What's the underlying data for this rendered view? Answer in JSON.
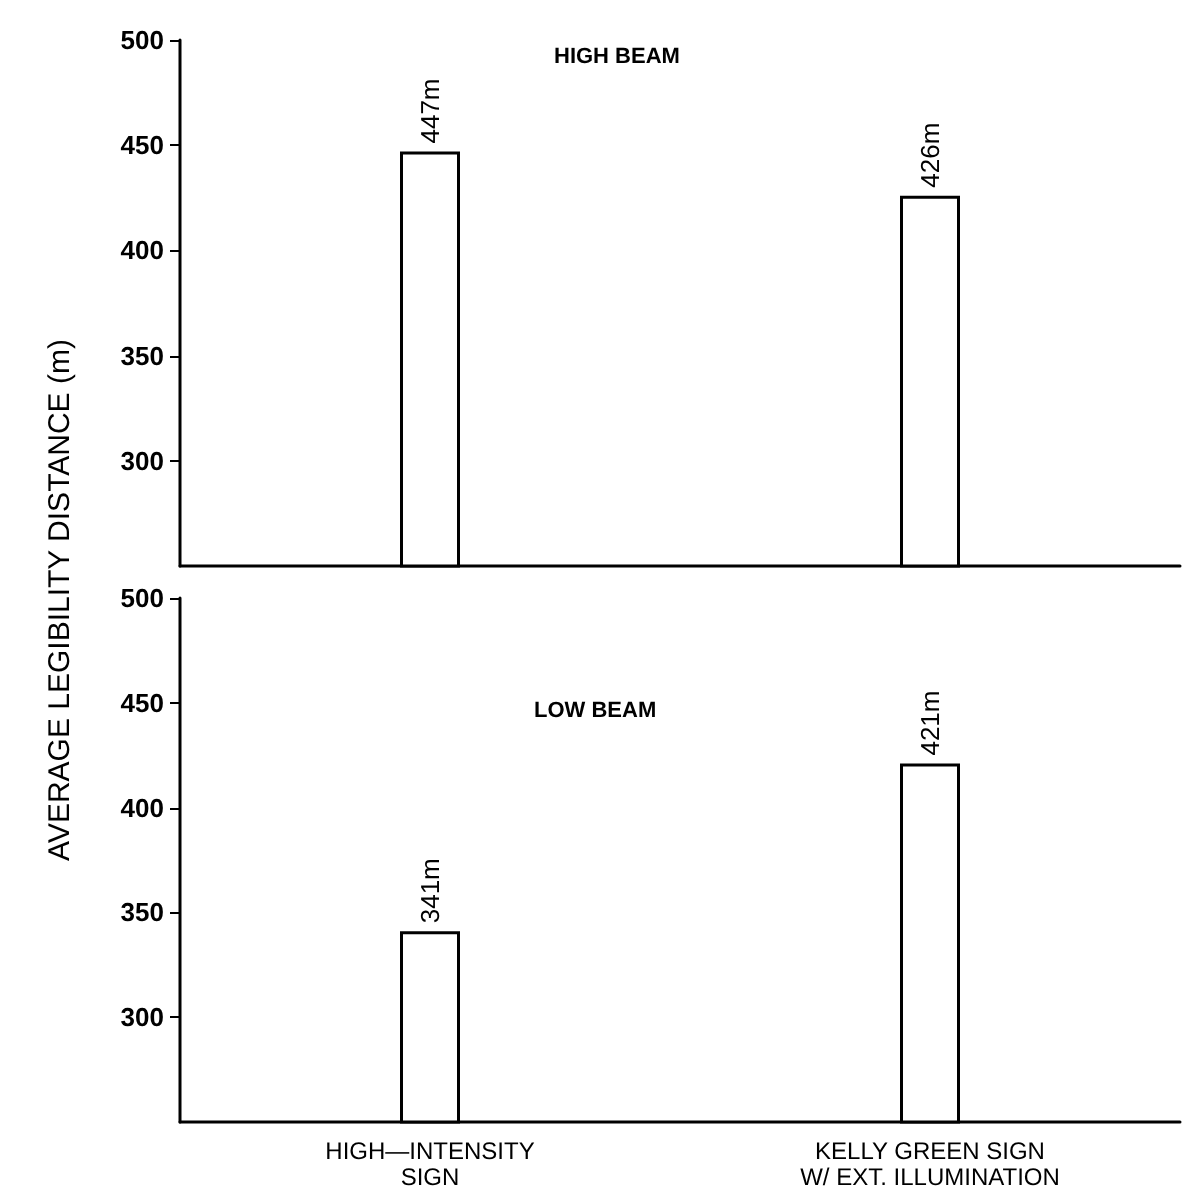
{
  "chart_data": [
    {
      "type": "bar",
      "title": "HIGH BEAM",
      "ylabel": "AVERAGE LEGIBILITY DISTANCE (m)",
      "categories": [
        null,
        null
      ],
      "values": [
        447,
        426
      ],
      "value_labels": [
        "447m",
        "426m"
      ],
      "color": "#ffffff",
      "ylim": [
        250,
        500
      ],
      "yticks": [
        300,
        350,
        400,
        450,
        500
      ],
      "grid": false,
      "tick_labels": "y"
    },
    {
      "type": "bar",
      "title": "LOW BEAM",
      "categories": [
        "HIGH—INTENSITY\nSIGN",
        "KELLY GREEN SIGN\nW/ EXT. ILLUMINATION"
      ],
      "values": [
        341,
        421
      ],
      "value_labels": [
        "341m",
        "421m"
      ],
      "color": "#ffffff",
      "ylim": [
        250,
        500
      ],
      "yticks": [
        300,
        350,
        400,
        450,
        500
      ],
      "grid": false
    }
  ]
}
